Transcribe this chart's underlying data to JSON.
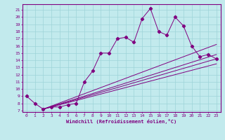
{
  "xlabel": "Windchill (Refroidissement éolien,°C)",
  "xlim": [
    -0.5,
    23.5
  ],
  "ylim": [
    6.8,
    21.8
  ],
  "xticks": [
    0,
    1,
    2,
    3,
    4,
    5,
    6,
    7,
    8,
    9,
    10,
    11,
    12,
    13,
    14,
    15,
    16,
    17,
    18,
    19,
    20,
    21,
    22,
    23
  ],
  "yticks": [
    7,
    8,
    9,
    10,
    11,
    12,
    13,
    14,
    15,
    16,
    17,
    18,
    19,
    20,
    21
  ],
  "background_color": "#c2eaed",
  "line_color": "#800080",
  "grid_color": "#9dd4d8",
  "main_line": {
    "x": [
      0,
      1,
      2,
      3,
      4,
      5,
      6,
      7,
      8,
      9,
      10,
      11,
      12,
      13,
      14,
      15,
      16,
      17,
      18,
      19,
      20,
      21,
      22,
      23
    ],
    "y": [
      9.0,
      8.0,
      7.2,
      7.5,
      7.5,
      7.8,
      8.0,
      11.0,
      12.5,
      15.0,
      15.0,
      17.0,
      17.2,
      16.5,
      19.8,
      21.2,
      18.0,
      17.5,
      20.0,
      18.8,
      16.0,
      14.5,
      14.8,
      14.2
    ]
  },
  "straight_lines": [
    {
      "x0": 2,
      "y0": 7.2,
      "x1": 23,
      "y1": 16.2
    },
    {
      "x0": 2,
      "y0": 7.2,
      "x1": 23,
      "y1": 14.8
    },
    {
      "x0": 2,
      "y0": 7.2,
      "x1": 23,
      "y1": 14.2
    },
    {
      "x0": 2,
      "y0": 7.2,
      "x1": 23,
      "y1": 13.5
    }
  ]
}
